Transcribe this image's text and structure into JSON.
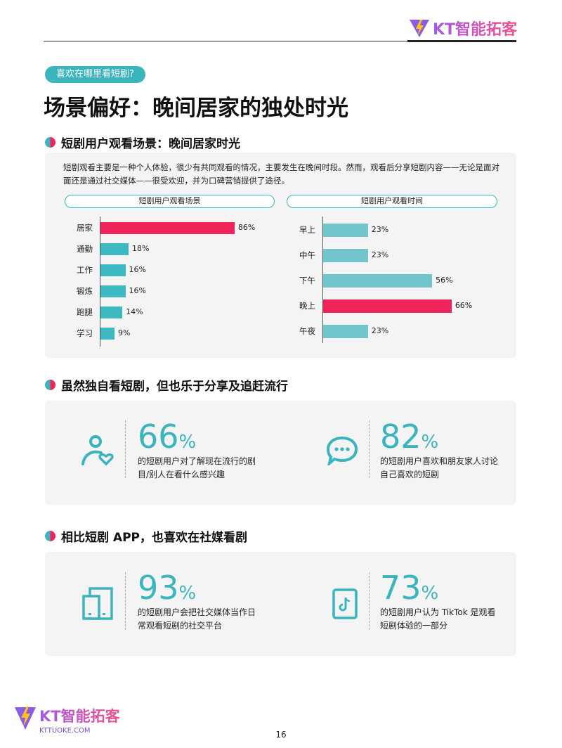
{
  "header": {
    "logo_text": "KT智能拓客"
  },
  "tag": "喜欢在哪里看短剧?",
  "title": "场景偏好：晚间居家的独处时光",
  "section1": {
    "heading": "短剧用户观看场景：晚间居家时光",
    "paragraph": "短剧观看主要是一种个人体验，很少有共同观看的情况，主要发生在晚间时段。然而，观看后分享短剧内容——无论是面对面还是通过社交媒体——很受欢迎，并为口碑营销提供了途径。"
  },
  "chart_data": [
    {
      "type": "bar",
      "orientation": "horizontal",
      "title": "短剧用户观看场景",
      "categories": [
        "居家",
        "通勤",
        "工作",
        "锻炼",
        "跑腿",
        "学习"
      ],
      "values": [
        86,
        18,
        16,
        16,
        14,
        9
      ],
      "labels": [
        "86%",
        "18%",
        "16%",
        "16%",
        "14%",
        "9%"
      ],
      "highlight": "居家",
      "colors": {
        "bar": "#3db9c2",
        "highlight": "#f0245a"
      }
    },
    {
      "type": "bar",
      "orientation": "horizontal",
      "title": "短剧用户观看时间",
      "categories": [
        "早上",
        "中午",
        "下午",
        "晚上",
        "午夜"
      ],
      "values": [
        23,
        23,
        56,
        66,
        23
      ],
      "labels": [
        "23%",
        "23%",
        "56%",
        "66%",
        "23%"
      ],
      "highlight": "晚上",
      "colors": {
        "bar": "#72c5cc",
        "highlight": "#f0245a"
      }
    }
  ],
  "section2": {
    "heading": "虽然独自看短剧，但也乐于分享及追赶流行",
    "stats": [
      {
        "icon": "person-heart-icon",
        "number": "66",
        "unit": "%",
        "text": "的短剧用户对了解现在流行的剧目/别人在看什么感兴趣"
      },
      {
        "icon": "chat-bubble-icon",
        "number": "82",
        "unit": "%",
        "text": "的短剧用户喜欢和朋友家人讨论自己喜欢的短剧"
      }
    ]
  },
  "section3": {
    "heading": "相比短剧 APP，也喜欢在社媒看剧",
    "stats": [
      {
        "icon": "devices-icon",
        "number": "93",
        "unit": "%",
        "text": "的短剧用户会把社交媒体当作日常观看短剧的社交平台"
      },
      {
        "icon": "tiktok-icon",
        "number": "73",
        "unit": "%",
        "text": "的短剧用户认为 TikTok 是观看短剧体验的一部分"
      }
    ]
  },
  "footer": {
    "logo_text": "KT智能拓客",
    "domain": "KTTUOKE.COM",
    "page": "16"
  },
  "colors": {
    "teal": "#3ab5bd",
    "pink": "#f0245a"
  }
}
